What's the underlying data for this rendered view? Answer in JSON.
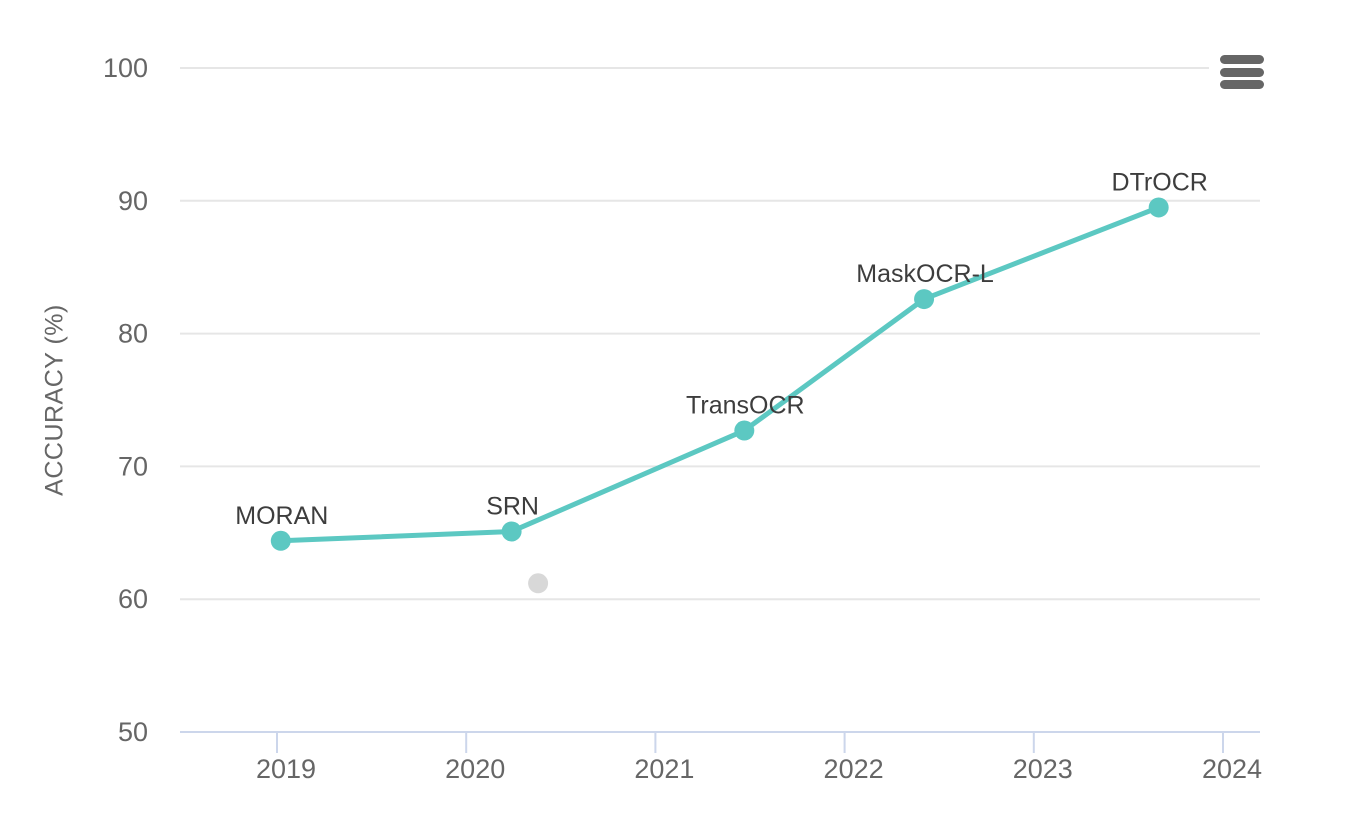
{
  "chart_data": {
    "type": "line",
    "title": "",
    "xlabel": "",
    "ylabel": "ACCURACY (%)",
    "xlim": [
      2018.48,
      2024.2
    ],
    "ylim": [
      50,
      100
    ],
    "x_ticks": [
      2019,
      2020,
      2021,
      2022,
      2023,
      2024
    ],
    "y_ticks": [
      50,
      60,
      70,
      80,
      90,
      100
    ],
    "grid": true,
    "legend": "none",
    "series": [
      {
        "name": "labeled-models",
        "type": "line",
        "color": "#5cc8c2",
        "line_width": 5,
        "marker_radius": 10,
        "points": [
          {
            "label": "MORAN",
            "x": 2019.02,
            "y": 64.4
          },
          {
            "label": "SRN",
            "x": 2020.24,
            "y": 65.1
          },
          {
            "label": "TransOCR",
            "x": 2021.47,
            "y": 72.7
          },
          {
            "label": "MaskOCR-L",
            "x": 2022.42,
            "y": 82.6
          },
          {
            "label": "DTrOCR",
            "x": 2023.66,
            "y": 89.5
          }
        ]
      },
      {
        "name": "unlabeled-point",
        "type": "scatter",
        "color": "#d8d8d8",
        "line_width": 0,
        "marker_radius": 10,
        "points": [
          {
            "label": "",
            "x": 2020.38,
            "y": 61.2
          }
        ]
      }
    ],
    "colors": {
      "grid": "#e6e6e6",
      "axis_line": "#ccd6eb",
      "tick_label": "#666666",
      "data_label": "#3d3d3d",
      "menu_icon": "#666666"
    }
  },
  "toolbar": {
    "menu_button_icon": "hamburger-icon"
  }
}
